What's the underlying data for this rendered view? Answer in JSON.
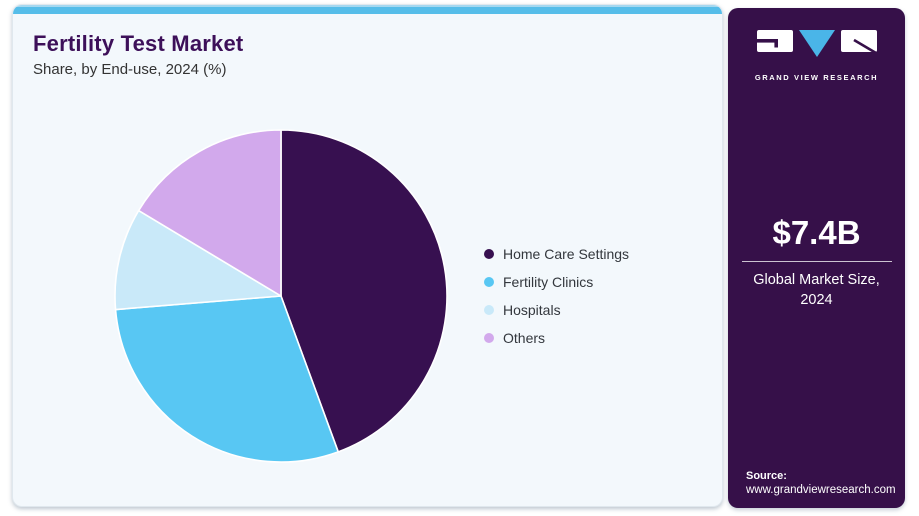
{
  "header": {
    "title": "Fertility Test Market",
    "subtitle": "Share, by End-use, 2024 (%)"
  },
  "chart_data": {
    "type": "pie",
    "title": "Fertility Test Market Share, by End-use, 2024 (%)",
    "categories": [
      "Home Care Settings",
      "Fertility Clinics",
      "Hospitals",
      "Others"
    ],
    "values": [
      44.4,
      29.3,
      9.9,
      16.4
    ],
    "colors": [
      "#371050",
      "#58c7f3",
      "#c9e9f9",
      "#d2a9ec"
    ],
    "legend_position": "right",
    "start_angle_deg": -90,
    "direction": "clockwise",
    "data_labels": "none"
  },
  "sidebar": {
    "brand": "GRAND VIEW RESEARCH",
    "market_size_value": "$7.4B",
    "market_size_label": "Global Market Size, 2024",
    "source_label": "Source:",
    "source_url": "www.grandviewresearch.com",
    "background_color": "#361049",
    "logo_triangle_color": "#4ab5e8"
  },
  "theme": {
    "card_background": "#f3f8fc",
    "top_strip_color": "#55bde9",
    "title_color": "#3d1059",
    "pie_slice_stroke": "#ffffff"
  }
}
